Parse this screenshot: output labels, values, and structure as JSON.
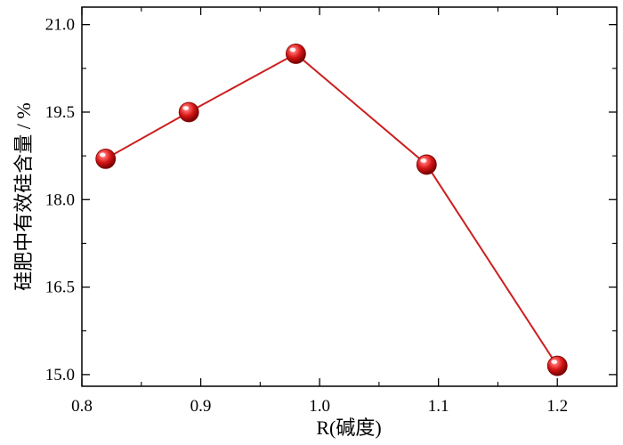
{
  "chart_data": {
    "type": "line",
    "title": "",
    "xlabel": "R(碱度)",
    "ylabel": "硅肥中有效硅含量 / %",
    "xlim": [
      0.8,
      1.25
    ],
    "ylim": [
      14.8,
      21.3
    ],
    "x_ticks": [
      0.8,
      0.9,
      1.0,
      1.1,
      1.2
    ],
    "x_tick_labels": [
      "0.8",
      "0.9",
      "1.0",
      "1.1",
      "1.2"
    ],
    "y_ticks": [
      15.0,
      16.5,
      18.0,
      19.5,
      21.0
    ],
    "y_tick_labels": [
      "15.0",
      "16.5",
      "18.0",
      "19.5",
      "21.0"
    ],
    "grid": false,
    "series": [
      {
        "color": "#cc1f1f",
        "marker": "sphere",
        "points": [
          {
            "x": 0.82,
            "y": 18.7
          },
          {
            "x": 0.89,
            "y": 19.5
          },
          {
            "x": 0.98,
            "y": 20.5
          },
          {
            "x": 1.09,
            "y": 18.6
          },
          {
            "x": 1.2,
            "y": 15.15
          }
        ]
      }
    ]
  }
}
